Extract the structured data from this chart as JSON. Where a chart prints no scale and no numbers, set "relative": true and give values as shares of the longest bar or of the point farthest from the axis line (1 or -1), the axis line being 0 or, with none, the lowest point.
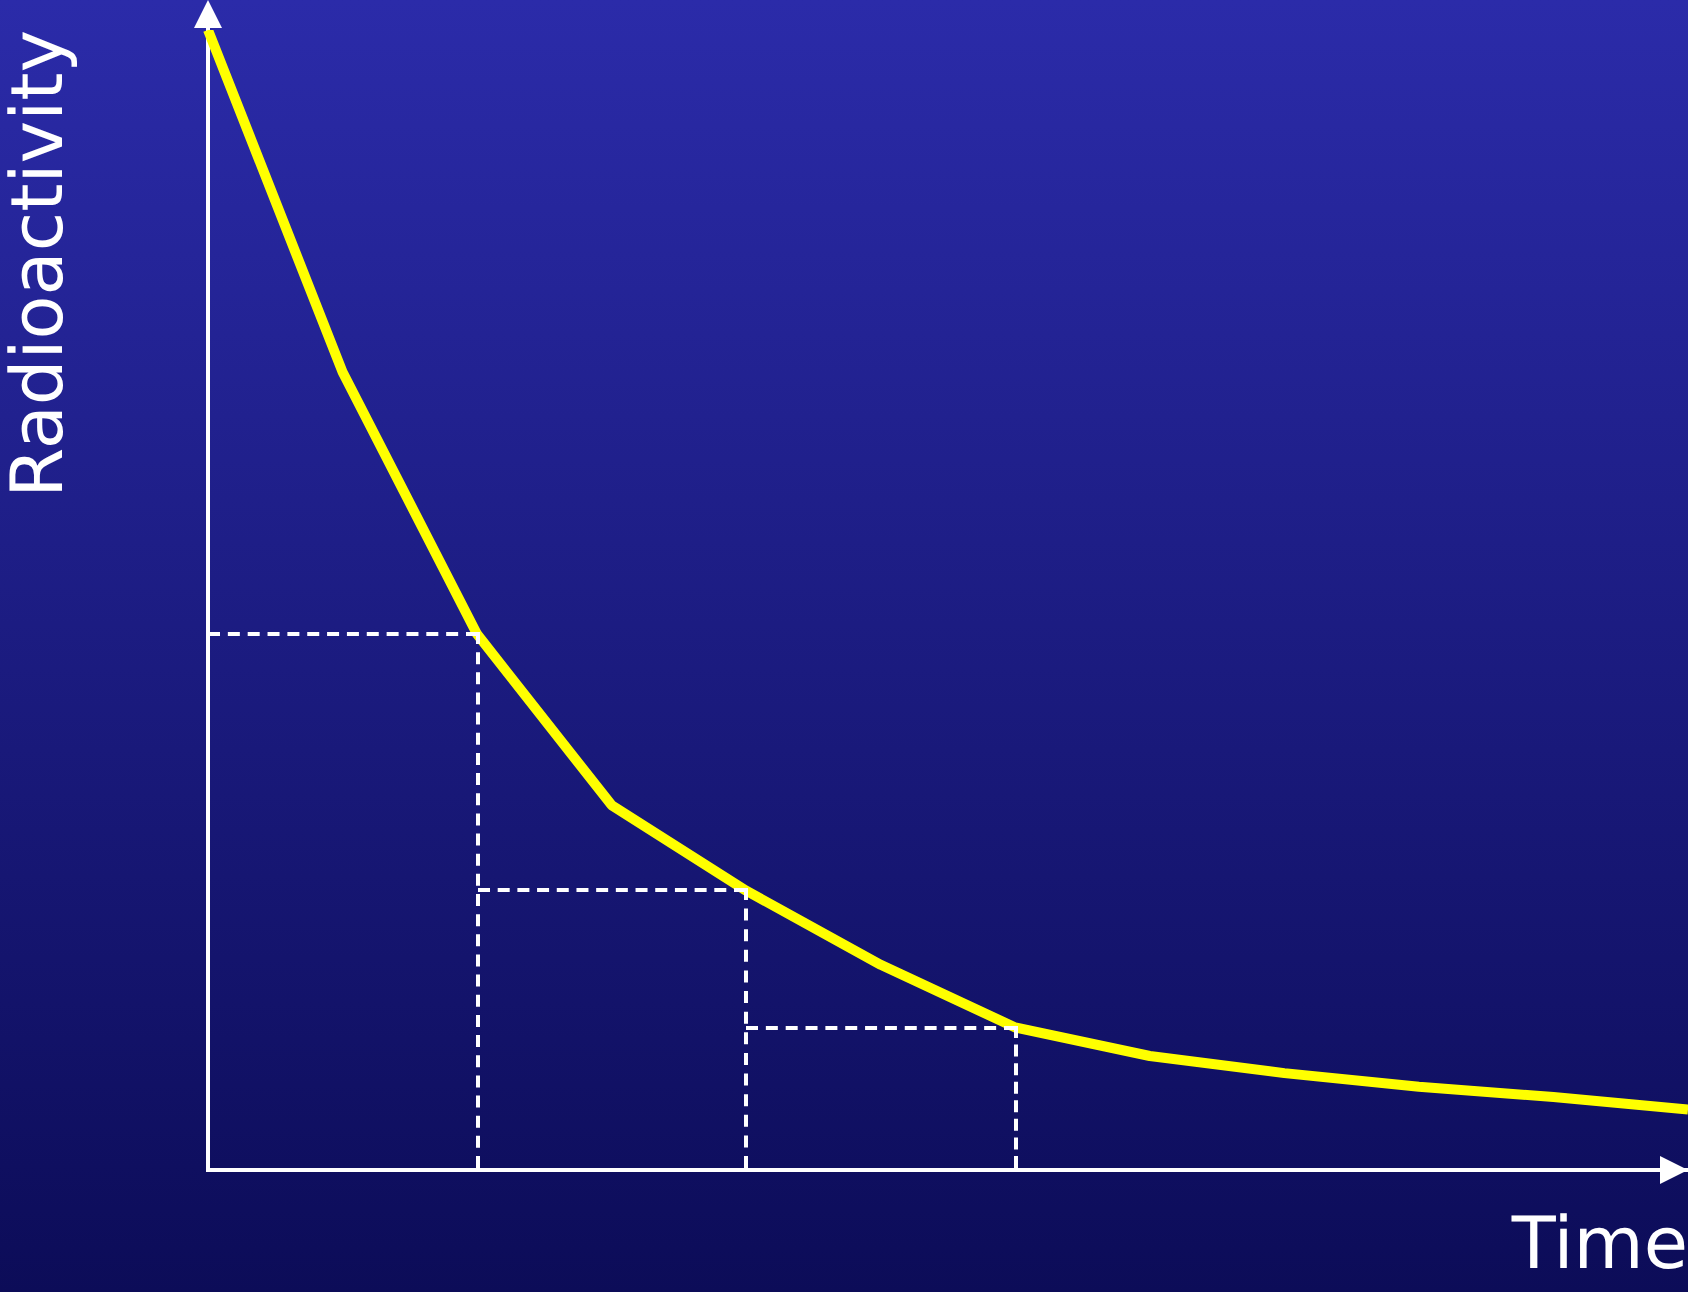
{
  "chart_data": {
    "type": "line",
    "xlabel": "Time",
    "ylabel": "Radioactivity",
    "relative": true,
    "grid": false,
    "legend": false,
    "marker": "none",
    "categories": [
      null,
      null,
      null,
      null,
      null,
      null,
      null,
      null,
      null,
      null,
      null,
      null
    ],
    "series": [
      {
        "color": "#ffff00",
        "values": [
          1,
          0.7,
          0.47,
          0.32,
          0.245,
          0.18,
          0.125,
          0.1,
          0.085,
          0.073,
          0.064,
          0.053
        ]
      }
    ]
  }
}
